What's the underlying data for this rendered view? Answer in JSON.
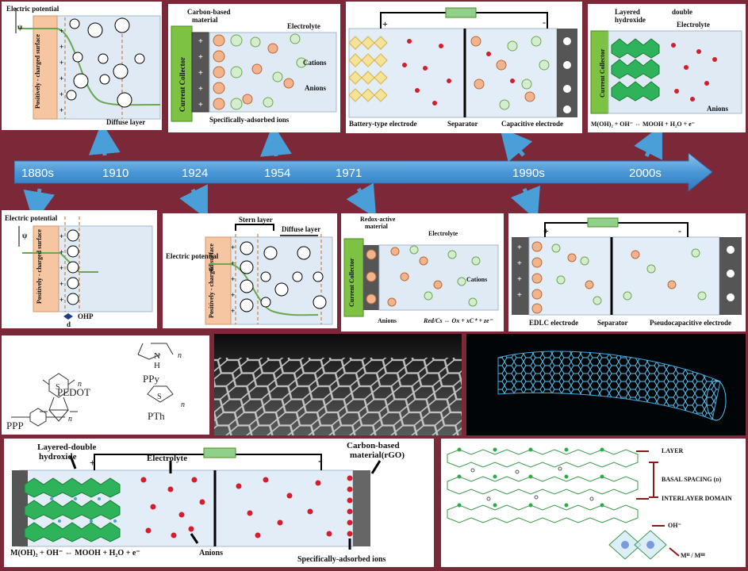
{
  "timeline": {
    "ticks": [
      "1880s",
      "1910",
      "1924",
      "1954",
      "1971",
      "1990s",
      "2000s"
    ],
    "colors": {
      "background": "#7b2838",
      "arrow": "#4a97d6",
      "link_arrow": "#4a9fd8",
      "electrode": "#f6c6a3",
      "collector": "#7dc242"
    }
  },
  "panel_1910": {
    "title": "Electric potential",
    "psi": "ψ",
    "surface": "Positively - charged surface",
    "diffuse": "Diffuse layer"
  },
  "panel_1954": {
    "carbon": "Carbon-based",
    "material": "material",
    "electrolyte": "Electrolyte",
    "collector": "Current Collector",
    "cations": "Cations",
    "anions": "Anions",
    "adsorbed": "Specifically-adsorbed ions"
  },
  "panel_1990a": {
    "plus": "+",
    "minus": "-",
    "battery": "Battery-type electrode",
    "separator": "Separator",
    "capacitive": "Capacitive electrode"
  },
  "panel_2000": {
    "ldh1": "Layered",
    "ldh_double": "double",
    "ldh2": "hydroxide",
    "electrolyte": "Electrolyte",
    "collector": "Current Collector",
    "anions": "Anions",
    "equation": "M(OH)₂ + OH⁻ ⇔ MOOH + H₂O + e⁻"
  },
  "panel_1880": {
    "title": "Electric potential",
    "psi": "ψ",
    "surface": "Positively - charged surface",
    "ohp": "OHP",
    "d": "d"
  },
  "panel_1924": {
    "stern": "Stern layer",
    "diffuse": "Diffuse layer",
    "title": "Electric potential",
    "psi": "ψ",
    "surface": "Positively - charged surface"
  },
  "panel_1971": {
    "redox1": "Redox-active",
    "redox2": "material",
    "electrolyte": "Electrolyte",
    "collector": "Current Collector",
    "cations": "Cations",
    "anions": "Anions",
    "equation": "Red/Cs ⇔ Ox + xC⁺ + ze⁻"
  },
  "panel_1990b": {
    "plus": "+",
    "minus": "-",
    "edlc": "EDLC electrode",
    "separator": "Separator",
    "pseudo": "Pseudocapacitive electrode"
  },
  "polymers": {
    "ppy": "PPy",
    "h": "H",
    "n": "N",
    "pedot": "PEDOT",
    "pth": "PTh",
    "s": "S",
    "ppp": "PPP",
    "sub": "n"
  },
  "panel_hybrid": {
    "ldh1": "Layered-double",
    "ldh2": "hydroxide",
    "plus": "+",
    "electrolyte": "Electrolyte",
    "minus": "-",
    "carbon1": "Carbon-based",
    "carbon2": "material(rGO)",
    "equation": "M(OH)₂ + OH⁻ ⇔ MOOH + H₂O + e⁻",
    "anions": "Anions",
    "adsorbed": "Specifically-adsorbed ions"
  },
  "panel_structure": {
    "layer": "LAYER",
    "basal": "BASAL SPACING (d)",
    "interlayer": "INTERLAYER DOMAIN",
    "oh": "OH⁻",
    "metal": "Mᴵᴵ / Mᴵᴵᴵ"
  }
}
